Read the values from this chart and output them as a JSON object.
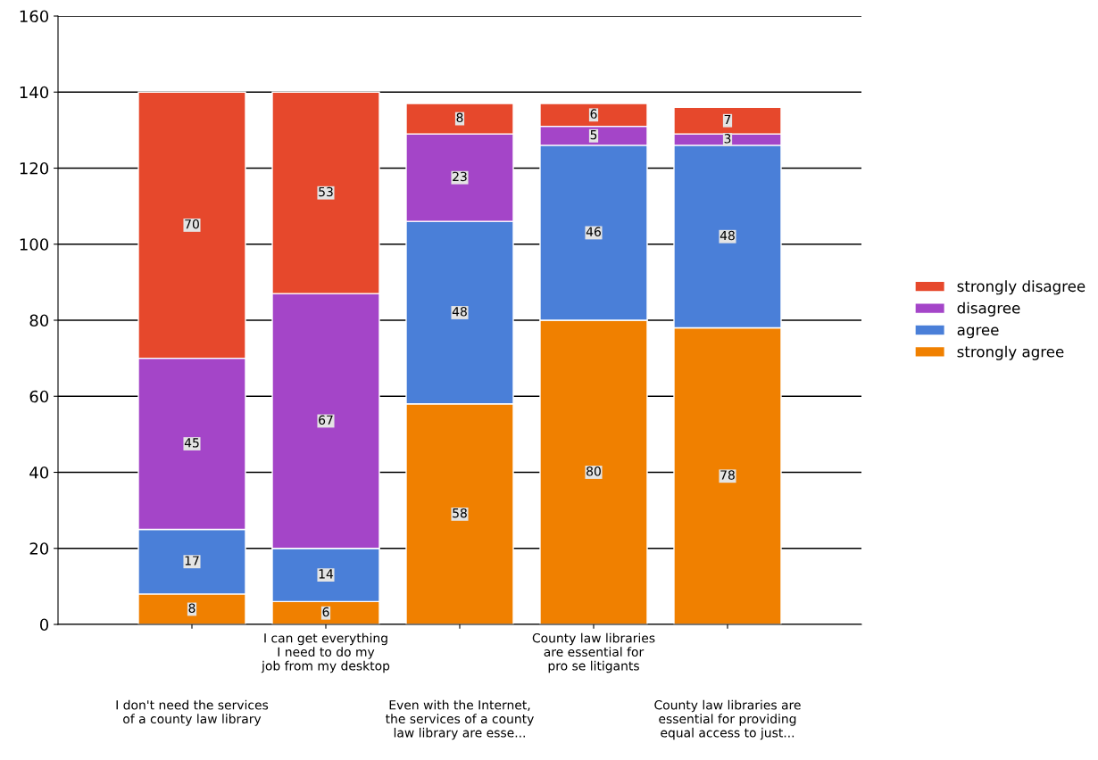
{
  "chart_data": {
    "type": "bar",
    "stacked": true,
    "categories": [
      "I don't need the services\nof a county law library",
      "I can get everything\nI need to do my\njob from my desktop",
      "Even with the Internet,\nthe services of a county\nlaw library are esse...",
      "County law libraries\nare essential for\npro se litigants",
      "County law libraries are\nessential for providing\nequal access to just..."
    ],
    "series": [
      {
        "name": "strongly agree",
        "color": "#f08000",
        "values": [
          8,
          6,
          58,
          80,
          78
        ]
      },
      {
        "name": "agree",
        "color": "#4a7fd8",
        "values": [
          17,
          14,
          48,
          46,
          48
        ]
      },
      {
        "name": "disagree",
        "color": "#a445c8",
        "values": [
          45,
          67,
          23,
          5,
          3
        ]
      },
      {
        "name": "strongly disagree",
        "color": "#e6482c",
        "values": [
          70,
          53,
          8,
          6,
          7
        ]
      }
    ],
    "ylim": [
      0,
      160
    ],
    "yticks": [
      0,
      20,
      40,
      60,
      80,
      100,
      120,
      140,
      160
    ],
    "grid": "y",
    "legend": "right",
    "data_labels": true
  }
}
